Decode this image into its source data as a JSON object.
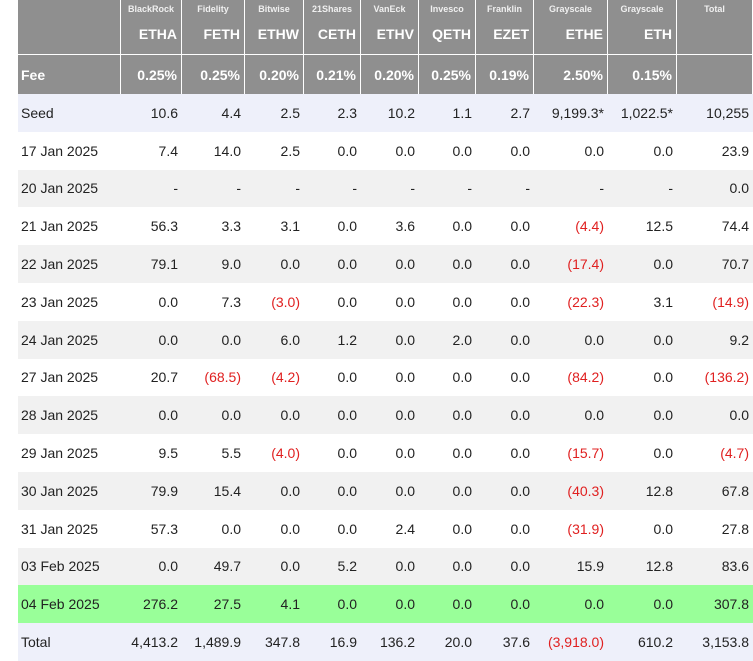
{
  "table": {
    "issuer_row": [
      "",
      "BlackRock",
      "Fidelity",
      "Bitwise",
      "21Shares",
      "VanEck",
      "Invesco",
      "Franklin",
      "Grayscale",
      "Grayscale",
      "Total"
    ],
    "tickers": [
      "",
      "ETHA",
      "FETH",
      "ETHW",
      "CETH",
      "ETHV",
      "QETH",
      "EZET",
      "ETHE",
      "ETH",
      ""
    ],
    "fee_label": "Fee",
    "fees": [
      "0.25%",
      "0.25%",
      "0.20%",
      "0.21%",
      "0.20%",
      "0.25%",
      "0.19%",
      "2.50%",
      "0.15%",
      ""
    ],
    "rows": [
      {
        "date": "Seed",
        "style": "seed",
        "values": [
          "10.6",
          "4.4",
          "2.5",
          "2.3",
          "10.2",
          "1.1",
          "2.7",
          "9,199.3*",
          "1,022.5*",
          "10,255"
        ]
      },
      {
        "date": "17 Jan 2025",
        "style": "plain",
        "values": [
          "7.4",
          "14.0",
          "2.5",
          "0.0",
          "0.0",
          "0.0",
          "0.0",
          "0.0",
          "0.0",
          "23.9"
        ]
      },
      {
        "date": "20 Jan 2025",
        "style": "alt",
        "values": [
          "-",
          "-",
          "-",
          "-",
          "-",
          "-",
          "-",
          "-",
          "-",
          "0.0"
        ]
      },
      {
        "date": "21 Jan 2025",
        "style": "plain",
        "values": [
          "56.3",
          "3.3",
          "3.1",
          "0.0",
          "3.6",
          "0.0",
          "0.0",
          "(4.4)",
          "12.5",
          "74.4"
        ]
      },
      {
        "date": "22 Jan 2025",
        "style": "alt",
        "values": [
          "79.1",
          "9.0",
          "0.0",
          "0.0",
          "0.0",
          "0.0",
          "0.0",
          "(17.4)",
          "0.0",
          "70.7"
        ]
      },
      {
        "date": "23 Jan 2025",
        "style": "plain",
        "values": [
          "0.0",
          "7.3",
          "(3.0)",
          "0.0",
          "0.0",
          "0.0",
          "0.0",
          "(22.3)",
          "3.1",
          "(14.9)"
        ]
      },
      {
        "date": "24 Jan 2025",
        "style": "alt",
        "values": [
          "0.0",
          "0.0",
          "6.0",
          "1.2",
          "0.0",
          "2.0",
          "0.0",
          "0.0",
          "0.0",
          "9.2"
        ]
      },
      {
        "date": "27 Jan 2025",
        "style": "plain",
        "values": [
          "20.7",
          "(68.5)",
          "(4.2)",
          "0.0",
          "0.0",
          "0.0",
          "0.0",
          "(84.2)",
          "0.0",
          "(136.2)"
        ]
      },
      {
        "date": "28 Jan 2025",
        "style": "alt",
        "values": [
          "0.0",
          "0.0",
          "0.0",
          "0.0",
          "0.0",
          "0.0",
          "0.0",
          "0.0",
          "0.0",
          "0.0"
        ]
      },
      {
        "date": "29 Jan 2025",
        "style": "plain",
        "values": [
          "9.5",
          "5.5",
          "(4.0)",
          "0.0",
          "0.0",
          "0.0",
          "0.0",
          "(15.7)",
          "0.0",
          "(4.7)"
        ]
      },
      {
        "date": "30 Jan 2025",
        "style": "alt",
        "values": [
          "79.9",
          "15.4",
          "0.0",
          "0.0",
          "0.0",
          "0.0",
          "0.0",
          "(40.3)",
          "12.8",
          "67.8"
        ]
      },
      {
        "date": "31 Jan 2025",
        "style": "plain",
        "values": [
          "57.3",
          "0.0",
          "0.0",
          "0.0",
          "2.4",
          "0.0",
          "0.0",
          "(31.9)",
          "0.0",
          "27.8"
        ]
      },
      {
        "date": "03 Feb 2025",
        "style": "alt",
        "values": [
          "0.0",
          "49.7",
          "0.0",
          "5.2",
          "0.0",
          "0.0",
          "0.0",
          "15.9",
          "12.8",
          "83.6"
        ]
      },
      {
        "date": "04 Feb 2025",
        "style": "highlight",
        "values": [
          "276.2",
          "27.5",
          "4.1",
          "0.0",
          "0.0",
          "0.0",
          "0.0",
          "0.0",
          "0.0",
          "307.8"
        ]
      },
      {
        "date": "Total",
        "style": "total",
        "values": [
          "4,413.2",
          "1,489.9",
          "347.8",
          "16.9",
          "136.2",
          "20.0",
          "37.6",
          "(3,918.0)",
          "610.2",
          "3,153.8"
        ]
      }
    ]
  },
  "colors": {
    "header_bg": "#8f8f8f",
    "negative": "#e02020",
    "highlight_row": "#99ff99",
    "seed_row": "#eef0fa",
    "alt_row": "#f1f1f1"
  }
}
